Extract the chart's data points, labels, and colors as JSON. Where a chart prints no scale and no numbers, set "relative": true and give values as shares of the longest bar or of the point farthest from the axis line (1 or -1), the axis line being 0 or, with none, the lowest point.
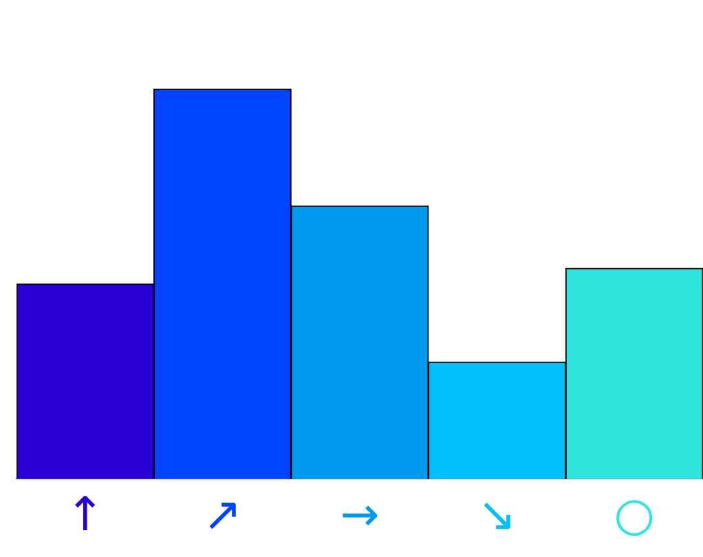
{
  "chart_data": {
    "type": "bar",
    "categories": [
      "↑",
      "↗",
      "→",
      "↘",
      "○"
    ],
    "values": [
      0.5,
      1,
      0.7,
      0.3,
      0.54
    ],
    "colors": [
      "#2a00d5",
      "#0044ff",
      "#0099f0",
      "#00bff9",
      "#2ee6dc"
    ],
    "relative": true,
    "grid": false,
    "legend": false
  }
}
